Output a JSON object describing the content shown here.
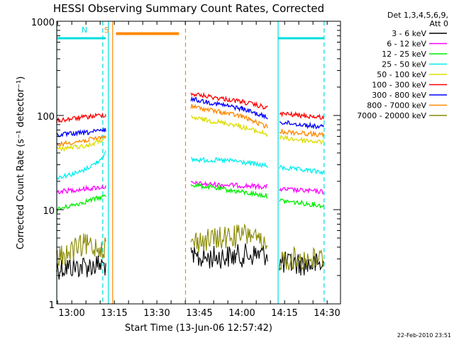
{
  "chart_data": {
    "type": "line",
    "title": "HESSI Observing Summary Count Rates, Corrected",
    "xlabel": "Start Time (13-Jun-06 12:57:42)",
    "ylabel": "Corrected Count Rate (s⁻¹ detector⁻¹)",
    "xlim": [
      "12:57:42",
      "14:37:42"
    ],
    "ylim": [
      1,
      1000
    ],
    "yscale": "log",
    "x_ticks": [
      "13:00",
      "13:15",
      "13:30",
      "13:45",
      "14:00",
      "14:15",
      "14:30"
    ],
    "y_ticks": [
      "1",
      "10",
      "100",
      "1000"
    ],
    "legend_header": [
      "Det 1,3,4,5,6,9,",
      "Att 0"
    ],
    "legend_position": "right-outside",
    "footer": "22-Feb-2010 23:51",
    "series": [
      {
        "name": "3 - 6 keV",
        "color": "#000000",
        "values": [
          [
            12.96,
            2.4
          ],
          [
            13.25,
            2.6
          ],
          [
            13.25,
            null
          ],
          [
            13.75,
            3.0
          ],
          [
            14.2,
            3.4
          ],
          [
            14.2,
            null
          ],
          [
            14.27,
            2.7
          ],
          [
            14.53,
            2.6
          ]
        ]
      },
      {
        "name": "6 - 12 keV",
        "color": "#ff00ff",
        "values": [
          [
            12.96,
            15.5
          ],
          [
            13.25,
            17.5
          ],
          [
            13.25,
            null
          ],
          [
            13.75,
            19
          ],
          [
            14.2,
            17.5
          ],
          [
            14.2,
            null
          ],
          [
            14.27,
            16.5
          ],
          [
            14.53,
            15.5
          ]
        ]
      },
      {
        "name": "12 - 25 keV",
        "color": "#00ee00",
        "values": [
          [
            12.96,
            10
          ],
          [
            13.25,
            14
          ],
          [
            13.25,
            null
          ],
          [
            13.75,
            18.5
          ],
          [
            14.2,
            14
          ],
          [
            14.2,
            null
          ],
          [
            14.27,
            12.5
          ],
          [
            14.53,
            11
          ]
        ]
      },
      {
        "name": "25 - 50 keV",
        "color": "#00eeee",
        "values": [
          [
            12.96,
            22
          ],
          [
            13.1,
            25
          ],
          [
            13.2,
            32
          ],
          [
            13.25,
            40
          ],
          [
            13.25,
            null
          ],
          [
            13.75,
            34
          ],
          [
            14.0,
            33
          ],
          [
            14.2,
            29
          ],
          [
            14.2,
            null
          ],
          [
            14.27,
            28
          ],
          [
            14.53,
            25
          ]
        ]
      },
      {
        "name": "50 - 100 keV",
        "color": "#dddd00",
        "values": [
          [
            12.96,
            44
          ],
          [
            13.15,
            48
          ],
          [
            13.25,
            57
          ],
          [
            13.25,
            null
          ],
          [
            13.75,
            95
          ],
          [
            14.0,
            80
          ],
          [
            14.2,
            63
          ],
          [
            14.2,
            null
          ],
          [
            14.27,
            58
          ],
          [
            14.53,
            52
          ]
        ]
      },
      {
        "name": "100 - 300 keV",
        "color": "#ff0000",
        "values": [
          [
            12.96,
            88
          ],
          [
            13.15,
            97
          ],
          [
            13.25,
            102
          ],
          [
            13.25,
            null
          ],
          [
            13.75,
            170
          ],
          [
            14.05,
            140
          ],
          [
            14.2,
            120
          ],
          [
            14.2,
            null
          ],
          [
            14.27,
            105
          ],
          [
            14.53,
            95
          ]
        ]
      },
      {
        "name": "300 - 800 keV",
        "color": "#0000ff",
        "values": [
          [
            12.96,
            62
          ],
          [
            13.15,
            66
          ],
          [
            13.25,
            70
          ],
          [
            13.25,
            null
          ],
          [
            13.75,
            150
          ],
          [
            14.05,
            118
          ],
          [
            14.2,
            95
          ],
          [
            14.2,
            null
          ],
          [
            14.27,
            85
          ],
          [
            14.53,
            75
          ]
        ]
      },
      {
        "name": "800 - 7000 keV",
        "color": "#ff8800",
        "values": [
          [
            12.96,
            49
          ],
          [
            13.15,
            55
          ],
          [
            13.25,
            60
          ],
          [
            13.25,
            null
          ],
          [
            13.75,
            125
          ],
          [
            14.05,
            98
          ],
          [
            14.2,
            75
          ],
          [
            14.2,
            null
          ],
          [
            14.27,
            68
          ],
          [
            14.53,
            62
          ]
        ]
      },
      {
        "name": "7000 - 20000 keV",
        "color": "#888800",
        "values": [
          [
            12.96,
            3.0
          ],
          [
            13.12,
            4.2
          ],
          [
            13.25,
            4.0
          ],
          [
            13.25,
            null
          ],
          [
            13.75,
            4.5
          ],
          [
            14.1,
            5.5
          ],
          [
            14.2,
            3.6
          ],
          [
            14.2,
            null
          ],
          [
            14.27,
            3.0
          ],
          [
            14.53,
            3.0
          ]
        ]
      }
    ],
    "annotations": [
      {
        "label": "N",
        "color": "#00dddd",
        "time": 13.17
      },
      {
        "label": "S",
        "color": "#ff8800",
        "time": 13.3
      }
    ],
    "markers": {
      "night_color": "#00dddd",
      "saa_color": "#ff8800",
      "night_bars": [
        [
          12.96,
          13.25
        ],
        [
          14.26,
          14.53
        ]
      ],
      "saa_bars": [
        [
          13.31,
          13.68
        ]
      ],
      "solid_lines": [
        {
          "time": 12.962,
          "color": "#00dddd"
        },
        {
          "time": 13.265,
          "color": "#00dddd"
        },
        {
          "time": 13.29,
          "color": "#ff8800"
        },
        {
          "time": 14.262,
          "color": "#00dddd"
        }
      ],
      "dashed_lines": [
        {
          "time": 13.232,
          "color": "#00dddd"
        },
        {
          "time": 13.718,
          "color": "#ff8800"
        },
        {
          "time": 14.532,
          "color": "#00dddd"
        }
      ],
      "bar_level": 660
    }
  }
}
